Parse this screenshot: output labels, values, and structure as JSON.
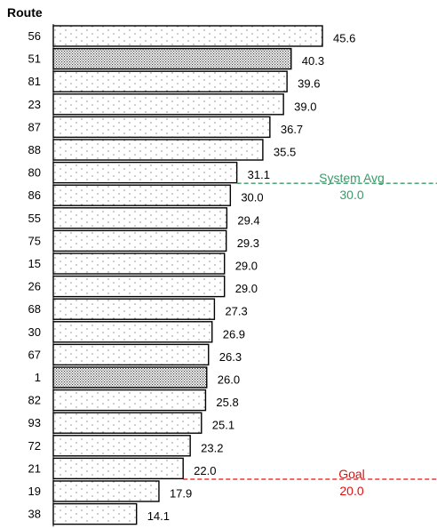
{
  "chart_data": {
    "type": "bar",
    "orientation": "horizontal",
    "ylabel": "Route",
    "categories": [
      "56",
      "51",
      "81",
      "23",
      "87",
      "88",
      "80",
      "86",
      "55",
      "75",
      "15",
      "26",
      "68",
      "30",
      "67",
      "1",
      "82",
      "93",
      "72",
      "21",
      "19",
      "38"
    ],
    "values": [
      45.6,
      40.3,
      39.6,
      39.0,
      36.7,
      35.5,
      31.1,
      30.0,
      29.4,
      29.3,
      29.0,
      29.0,
      27.3,
      26.9,
      26.3,
      26.0,
      25.8,
      25.1,
      23.2,
      22.0,
      17.9,
      14.1
    ],
    "value_labels": [
      "45.6",
      "40.3",
      "39.6",
      "39.0",
      "36.7",
      "35.5",
      "31.1",
      "30.0",
      "29.4",
      "29.3",
      "29.0",
      "29.0",
      "27.3",
      "26.9",
      "26.3",
      "26.0",
      "25.8",
      "25.1",
      "23.2",
      "22.0",
      "17.9",
      "14.1"
    ],
    "highlighted": [
      "51",
      "1"
    ],
    "xlim": [
      0,
      45.6
    ],
    "reference_lines": [
      {
        "name": "System Avg",
        "value": 30.0,
        "label": "30.0",
        "color": "#3a9a6a"
      },
      {
        "name": "Goal",
        "value": 20.0,
        "label": "20.0",
        "color": "#e01010"
      }
    ],
    "grid": false
  }
}
